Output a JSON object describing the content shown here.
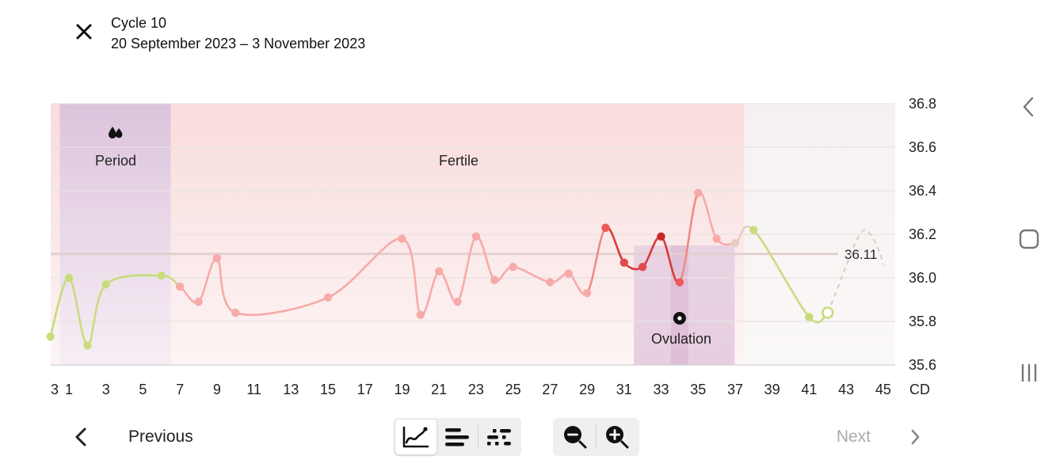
{
  "header": {
    "cycle_title": "Cycle 10",
    "date_range": "20 September 2023 – 3 November 2023"
  },
  "chart_data": {
    "type": "line",
    "y_ticks": [
      "36.8",
      "36.6",
      "36.4",
      "36.2",
      "36.0",
      "35.8",
      "35.6"
    ],
    "ylim": [
      35.6,
      36.8
    ],
    "x_ticks": [
      "3",
      "1",
      "3",
      "5",
      "7",
      "9",
      "11",
      "13",
      "15",
      "17",
      "19",
      "21",
      "23",
      "25",
      "27",
      "29",
      "31",
      "33",
      "35",
      "37",
      "39",
      "41",
      "43",
      "45"
    ],
    "x_unit_label": "CD",
    "coverline_value": 36.11,
    "coverline_label": "36.11",
    "phases": [
      {
        "label": "Period",
        "from": 0.5,
        "to": 6.5
      },
      {
        "label": "Fertile",
        "from": 6.5,
        "to": 37.5
      },
      {
        "label": "Ovulation",
        "from": 32,
        "to": 36.5
      }
    ],
    "ovulation_day": 34,
    "series": [
      {
        "values": [
          {
            "x": 0,
            "y": 35.73
          },
          {
            "x": 1,
            "y": 36.0
          },
          {
            "x": 2,
            "y": 35.69
          },
          {
            "x": 3,
            "y": 35.97
          },
          {
            "x": 6,
            "y": 36.01
          },
          {
            "x": 7,
            "y": 35.96
          },
          {
            "x": 8,
            "y": 35.89
          },
          {
            "x": 9,
            "y": 36.09
          },
          {
            "x": 10,
            "y": 35.84
          },
          {
            "x": 15,
            "y": 35.91
          },
          {
            "x": 19,
            "y": 36.18
          },
          {
            "x": 20,
            "y": 35.83
          },
          {
            "x": 21,
            "y": 36.03
          },
          {
            "x": 22,
            "y": 35.89
          },
          {
            "x": 23,
            "y": 36.19
          },
          {
            "x": 24,
            "y": 35.99
          },
          {
            "x": 25,
            "y": 36.05
          },
          {
            "x": 27,
            "y": 35.98
          },
          {
            "x": 28,
            "y": 36.02
          },
          {
            "x": 29,
            "y": 35.93
          },
          {
            "x": 30,
            "y": 36.23
          },
          {
            "x": 31,
            "y": 36.07
          },
          {
            "x": 32,
            "y": 36.05
          },
          {
            "x": 33,
            "y": 36.19
          },
          {
            "x": 34,
            "y": 35.98
          },
          {
            "x": 35,
            "y": 36.39
          },
          {
            "x": 36,
            "y": 36.18
          },
          {
            "x": 37,
            "y": 36.16
          },
          {
            "x": 38,
            "y": 36.22
          },
          {
            "x": 41,
            "y": 35.82
          },
          {
            "x": 42,
            "y": 35.84
          }
        ]
      }
    ],
    "colors": {
      "period_green": "#c8dc7c",
      "fertile_pink": "#f7aaa8",
      "peak_red": "#d93a3a",
      "post_beige": "#e6cdbf",
      "coverline": "#e2cfcf"
    }
  },
  "footer": {
    "previous_label": "Previous",
    "next_label": "Next"
  },
  "view_toggle": [
    "line-chart-icon",
    "bar-list-icon",
    "dots-icon"
  ],
  "zoom": [
    "zoom-out-icon",
    "zoom-in-icon"
  ]
}
